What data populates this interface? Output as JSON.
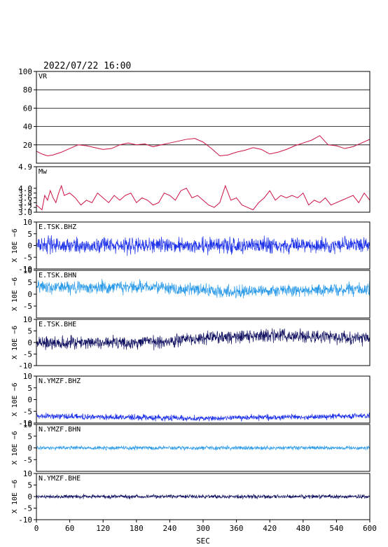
{
  "header": {
    "datetime": "2022/07/22 16:00"
  },
  "chart_data": {
    "type": "line",
    "title": "2022/07/22 16:00",
    "xlabel": "SEC",
    "xlim": [
      0,
      600
    ],
    "xticks": [
      0,
      60,
      120,
      180,
      240,
      300,
      360,
      420,
      480,
      540,
      600
    ],
    "panels": [
      {
        "id": "vr",
        "label": "VR",
        "ylabel": "",
        "ylim": [
          0,
          100
        ],
        "yticks": [
          20,
          40,
          60,
          80,
          100
        ],
        "grid": true,
        "color": "#cc1144",
        "series": [
          {
            "x": [
              0,
              10,
              20,
              30,
              45,
              60,
              75,
              90,
              105,
              120,
              135,
              150,
              165,
              180,
              195,
              210,
              225,
              240,
              255,
              270,
              285,
              300,
              315,
              330,
              345,
              360,
              375,
              390,
              405,
              420,
              435,
              450,
              465,
              480,
              495,
              510,
              525,
              540,
              555,
              570,
              585,
              600
            ],
            "y": [
              13,
              10,
              8,
              9,
              12,
              16,
              20,
              19,
              17,
              15,
              16,
              20,
              22,
              20,
              21,
              18,
              20,
              22,
              24,
              26,
              27,
              23,
              16,
              8,
              9,
              12,
              14,
              17,
              15,
              10,
              12,
              15,
              19,
              22,
              25,
              30,
              20,
              19,
              16,
              18,
              22,
              26
            ]
          }
        ]
      },
      {
        "id": "mw",
        "label": "Mw",
        "ylabel": "",
        "ylim": [
          3.0,
          4.9
        ],
        "yticks": [
          3.0,
          3.2,
          3.4,
          3.6,
          3.8,
          4.0,
          4.9
        ],
        "grid": false,
        "color": "#cc1144",
        "series": [
          {
            "x": [
              0,
              5,
              10,
              15,
              20,
              25,
              30,
              35,
              40,
              45,
              50,
              60,
              70,
              80,
              90,
              100,
              110,
              120,
              130,
              140,
              150,
              160,
              170,
              180,
              190,
              200,
              210,
              220,
              230,
              240,
              250,
              260,
              270,
              280,
              290,
              300,
              310,
              320,
              330,
              340,
              350,
              360,
              370,
              380,
              390,
              400,
              410,
              420,
              430,
              440,
              450,
              460,
              470,
              480,
              490,
              500,
              510,
              520,
              530,
              540,
              550,
              560,
              570,
              580,
              590,
              600
            ],
            "y": [
              3.3,
              3.2,
              3.1,
              3.7,
              3.5,
              3.9,
              3.6,
              3.4,
              3.8,
              4.1,
              3.7,
              3.8,
              3.6,
              3.3,
              3.5,
              3.4,
              3.8,
              3.6,
              3.4,
              3.7,
              3.5,
              3.7,
              3.8,
              3.4,
              3.6,
              3.5,
              3.3,
              3.4,
              3.8,
              3.7,
              3.5,
              3.9,
              4.0,
              3.6,
              3.7,
              3.5,
              3.3,
              3.2,
              3.4,
              4.1,
              3.5,
              3.6,
              3.3,
              3.2,
              3.1,
              3.4,
              3.6,
              3.9,
              3.5,
              3.7,
              3.6,
              3.7,
              3.6,
              3.8,
              3.3,
              3.5,
              3.4,
              3.6,
              3.3,
              3.4,
              3.5,
              3.6,
              3.7,
              3.4,
              3.8,
              3.5
            ]
          }
        ]
      },
      {
        "id": "e-tsk-bhz",
        "label": "E.TSK.BHZ",
        "ylabel": "X 10E −6",
        "ylim": [
          -10,
          10
        ],
        "yticks": [
          -10,
          -5,
          0,
          5,
          10
        ],
        "grid": false,
        "color": "#1a2ee8",
        "trace": {
          "baseline": [
            [
              0,
              0.5
            ],
            [
              60,
              0
            ],
            [
              600,
              0
            ]
          ],
          "amplitude": 1.6
        }
      },
      {
        "id": "e-tsk-bhn",
        "label": "E.TSK.BHN",
        "ylabel": "X 10E −6",
        "ylim": [
          -10,
          10
        ],
        "yticks": [
          -10,
          -5,
          0,
          5,
          10
        ],
        "grid": false,
        "color": "#2a9ae8",
        "trace": {
          "baseline": [
            [
              0,
              3
            ],
            [
              180,
              3
            ],
            [
              360,
              1
            ],
            [
              600,
              2
            ]
          ],
          "amplitude": 1.3
        }
      },
      {
        "id": "e-tsk-bhe",
        "label": "E.TSK.BHE",
        "ylabel": "X 10E −6",
        "ylim": [
          -10,
          10
        ],
        "yticks": [
          -10,
          -5,
          0,
          5,
          10
        ],
        "grid": false,
        "color": "#101060",
        "trace": {
          "baseline": [
            [
              0,
              0
            ],
            [
              180,
              0
            ],
            [
              300,
              2
            ],
            [
              420,
              3
            ],
            [
              600,
              2
            ]
          ],
          "amplitude": 1.4
        }
      },
      {
        "id": "n-ymzf-bhz",
        "label": "N.YMZF.BHZ",
        "ylabel": "X 10E −6",
        "ylim": [
          -10,
          10
        ],
        "yticks": [
          -10,
          -5,
          0,
          5,
          10
        ],
        "grid": false,
        "color": "#1a2ee8",
        "trace": {
          "baseline": [
            [
              0,
              -7
            ],
            [
              300,
              -8
            ],
            [
              600,
              -7
            ]
          ],
          "amplitude": 0.6
        }
      },
      {
        "id": "n-ymzf-bhn",
        "label": "N.YMZF.BHN",
        "ylabel": "X 10E −6",
        "ylim": [
          -10,
          10
        ],
        "yticks": [
          -10,
          -5,
          0,
          5,
          10
        ],
        "grid": false,
        "color": "#2a9ae8",
        "trace": {
          "baseline": [
            [
              0,
              0
            ],
            [
              600,
              0
            ]
          ],
          "amplitude": 0.4
        }
      },
      {
        "id": "n-ymzf-bhe",
        "label": "N.YMZF.BHE",
        "ylabel": "X 10E −6",
        "ylim": [
          -10,
          10
        ],
        "yticks": [
          -10,
          -5,
          0,
          5,
          10
        ],
        "grid": false,
        "color": "#101060",
        "trace": {
          "baseline": [
            [
              0,
              0
            ],
            [
              600,
              0
            ]
          ],
          "amplitude": 0.4
        }
      }
    ]
  }
}
